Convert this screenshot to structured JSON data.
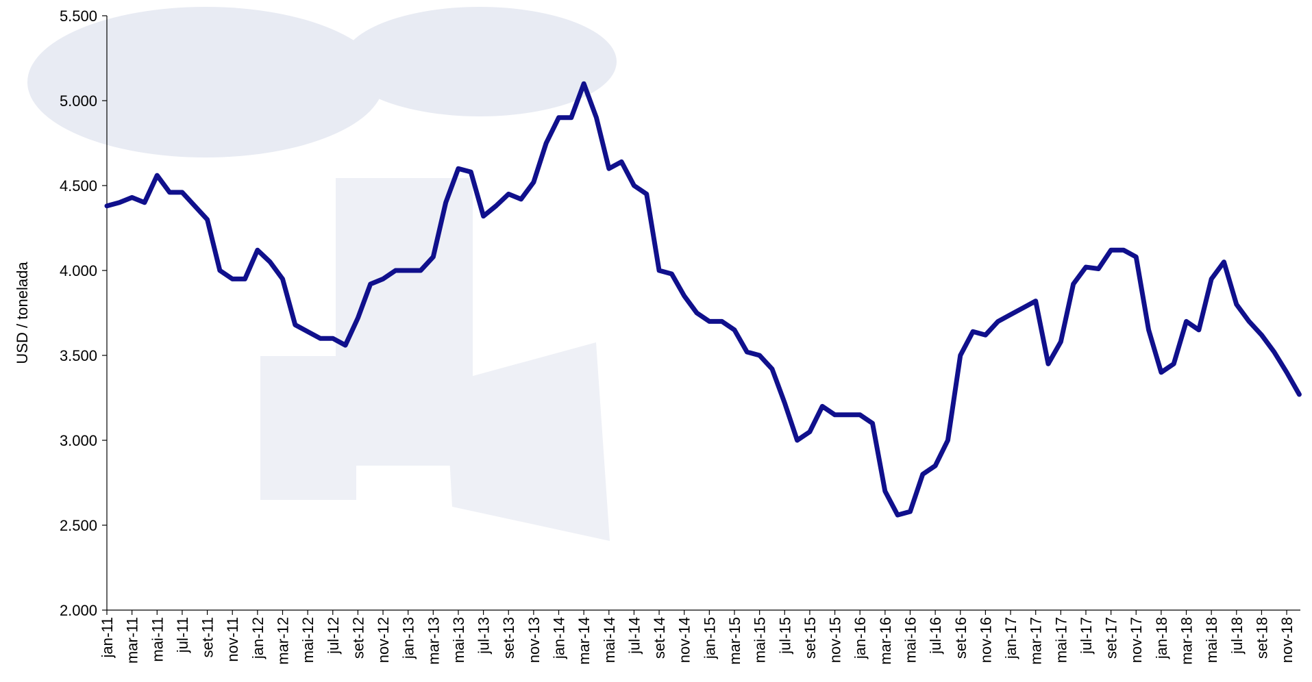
{
  "chart_data": {
    "type": "line",
    "y_label": "USD / tonelada",
    "categories": [
      "jan-11",
      null,
      "mar-11",
      null,
      "mai-11",
      null,
      "jul-11",
      null,
      "set-11",
      null,
      "nov-11",
      null,
      "jan-12",
      null,
      "mar-12",
      null,
      "mai-12",
      null,
      "jul-12",
      null,
      "set-12",
      null,
      "nov-12",
      null,
      "jan-13",
      null,
      "mar-13",
      null,
      "mai-13",
      null,
      "jul-13",
      null,
      "set-13",
      null,
      "nov-13",
      null,
      "jan-14",
      null,
      "mar-14",
      null,
      "mai-14",
      null,
      "jul-14",
      null,
      "set-14",
      null,
      "nov-14",
      null,
      "jan-15",
      null,
      "mar-15",
      null,
      "mai-15",
      null,
      "jul-15",
      null,
      "set-15",
      null,
      "nov-15",
      null,
      "jan-16",
      null,
      "mar-16",
      null,
      "mai-16",
      null,
      "jul-16",
      null,
      "set-16",
      null,
      "nov-16",
      null,
      "jan-17",
      null,
      "mar-17",
      null,
      "mai-17",
      null,
      "jul-17",
      null,
      "set-17",
      null,
      "nov-17",
      null,
      "jan-18",
      null,
      "mar-18",
      null,
      "mai-18",
      null,
      "jul-18",
      null,
      "set-18",
      null,
      "nov-18",
      null
    ],
    "values": [
      4380,
      4400,
      4430,
      4400,
      4560,
      4460,
      4460,
      4380,
      4300,
      4000,
      3950,
      3950,
      4120,
      4050,
      3950,
      3680,
      3640,
      3600,
      3600,
      3560,
      3720,
      3920,
      3950,
      4000,
      4000,
      4000,
      4080,
      4400,
      4600,
      4580,
      4320,
      4380,
      4450,
      4420,
      4520,
      4750,
      4900,
      4900,
      5100,
      4900,
      4600,
      4640,
      4500,
      4450,
      4000,
      3980,
      3850,
      3750,
      3700,
      3700,
      3650,
      3520,
      3500,
      3420,
      3220,
      3000,
      3050,
      3200,
      3150,
      3150,
      3150,
      3100,
      2700,
      2560,
      2580,
      2800,
      2850,
      3000,
      3500,
      3640,
      3620,
      3700,
      3740,
      3780,
      3820,
      3450,
      3580,
      3920,
      4020,
      4010,
      4120,
      4120,
      4080,
      3650,
      3400,
      3450,
      3700,
      3650,
      3950,
      4050,
      3800,
      3700,
      3620,
      3520,
      3400,
      3270
    ],
    "color": "#10108c",
    "ylim": [
      2000,
      5500
    ],
    "yticks": [
      {
        "value": 2000,
        "label": "2.000"
      },
      {
        "value": 2500,
        "label": "2.500"
      },
      {
        "value": 3000,
        "label": "3.000"
      },
      {
        "value": 3500,
        "label": "3.500"
      },
      {
        "value": 4000,
        "label": "4.000"
      },
      {
        "value": 4500,
        "label": "4.500"
      },
      {
        "value": 5000,
        "label": "5.000"
      },
      {
        "value": 5500,
        "label": "5.500"
      }
    ]
  }
}
